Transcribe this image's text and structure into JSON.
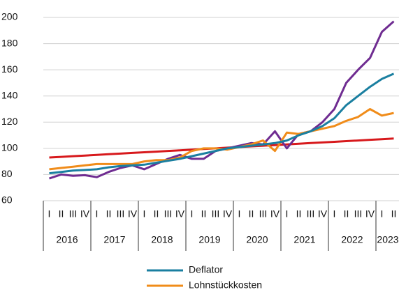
{
  "chart_data": {
    "type": "line",
    "categories": [
      "I",
      "II",
      "III",
      "IV",
      "I",
      "II",
      "III",
      "IV",
      "I",
      "II",
      "III",
      "IV",
      "I",
      "II",
      "III",
      "IV",
      "I",
      "II",
      "III",
      "IV",
      "I",
      "II",
      "III",
      "IV",
      "I",
      "II",
      "III",
      "IV",
      "I",
      "II"
    ],
    "years": [
      "2016",
      "2017",
      "2018",
      "2019",
      "2020",
      "2021",
      "2022",
      "2023"
    ],
    "ylim": [
      60,
      200
    ],
    "yticks": [
      60,
      80,
      100,
      120,
      140,
      160,
      180,
      200
    ],
    "grid": true,
    "series": [
      {
        "color": "#d7191c",
        "values": [
          93,
          93.5,
          94,
          94.5,
          95,
          95.5,
          96,
          96.5,
          97,
          97.5,
          98,
          98.5,
          99,
          99.5,
          100,
          100.5,
          101,
          101.5,
          102,
          102.5,
          103,
          103.5,
          104,
          104.5,
          105,
          105.5,
          106,
          106.5,
          107,
          107.5
        ]
      },
      {
        "color": "#6f2c91",
        "values": [
          77,
          80,
          79,
          79.5,
          78,
          82,
          85,
          87,
          84,
          88,
          92,
          95,
          92,
          92,
          98,
          100,
          102,
          104,
          103,
          113,
          100,
          111,
          113,
          120,
          130,
          150,
          160,
          169,
          189,
          197
        ]
      },
      {
        "name": "Lohnstückkosten",
        "color": "#f08c1a",
        "values": [
          84,
          85,
          86,
          87,
          88,
          88,
          88,
          88,
          90,
          91,
          91,
          93,
          98,
          100,
          100,
          99,
          101,
          103,
          106,
          98,
          112,
          111,
          113,
          115,
          117,
          121,
          124,
          130,
          125,
          127
        ]
      },
      {
        "name": "Deflator",
        "color": "#1a7fa0",
        "values": [
          81,
          82,
          83,
          83.5,
          84,
          85.5,
          86.5,
          87,
          87.5,
          89,
          90.5,
          92,
          94,
          96,
          98,
          100,
          101,
          102,
          103,
          104,
          106,
          110,
          113,
          117,
          123,
          133,
          140,
          147,
          153,
          157
        ]
      }
    ]
  }
}
